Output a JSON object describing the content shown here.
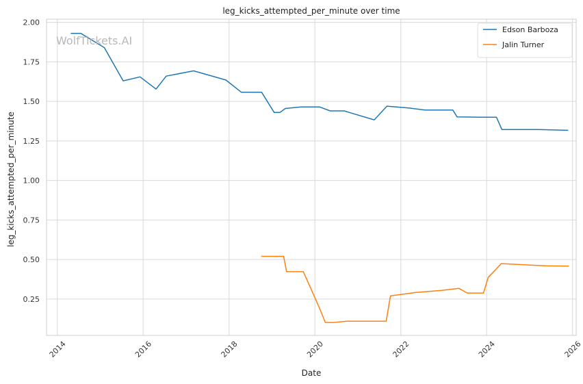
{
  "watermark": "WolfTickets.AI",
  "colors": {
    "series_0": "#1f77b4",
    "series_1": "#ff7f0e",
    "grid": "#d9d9d9",
    "frame": "#cccccc"
  },
  "chart_data": {
    "type": "line",
    "title": "leg_kicks_attempted_per_minute over time",
    "xlabel": "Date",
    "ylabel": "leg_kicks_attempted_per_minute",
    "xlim": [
      "2013-10-01",
      "2026-02-01"
    ],
    "ylim": [
      0.02,
      2.02
    ],
    "grid": true,
    "legend_position": "top-right",
    "x_ticks": [
      "2014",
      "2016",
      "2018",
      "2020",
      "2022",
      "2024",
      "2026"
    ],
    "y_ticks": [
      "0.25",
      "0.50",
      "0.75",
      "1.00",
      "1.25",
      "1.50",
      "1.75",
      "2.00"
    ],
    "series": [
      {
        "name": "Edson Barboza",
        "points": [
          [
            "2014-04-25",
            1.93
          ],
          [
            "2014-07-20",
            1.93
          ],
          [
            "2015-02-05",
            1.84
          ],
          [
            "2015-07-15",
            1.63
          ],
          [
            "2015-12-05",
            1.655
          ],
          [
            "2016-04-20",
            1.578
          ],
          [
            "2016-07-15",
            1.66
          ],
          [
            "2017-03-05",
            1.693
          ],
          [
            "2017-12-05",
            1.635
          ],
          [
            "2018-04-15",
            1.558
          ],
          [
            "2018-10-05",
            1.558
          ],
          [
            "2019-01-20",
            1.43
          ],
          [
            "2019-03-10",
            1.43
          ],
          [
            "2019-04-25",
            1.455
          ],
          [
            "2019-09-05",
            1.465
          ],
          [
            "2020-02-10",
            1.465
          ],
          [
            "2020-05-10",
            1.44
          ],
          [
            "2020-09-05",
            1.44
          ],
          [
            "2020-10-20",
            1.43
          ],
          [
            "2021-05-20",
            1.383
          ],
          [
            "2021-09-05",
            1.47
          ],
          [
            "2022-03-10",
            1.458
          ],
          [
            "2022-07-25",
            1.445
          ],
          [
            "2023-03-20",
            1.445
          ],
          [
            "2023-04-25",
            1.402
          ],
          [
            "2023-11-20",
            1.4
          ],
          [
            "2024-03-25",
            1.4
          ],
          [
            "2024-05-10",
            1.322
          ],
          [
            "2025-03-15",
            1.322
          ],
          [
            "2025-11-25",
            1.317
          ]
        ]
      },
      {
        "name": "Jalin Turner",
        "points": [
          [
            "2018-10-01",
            0.52
          ],
          [
            "2019-04-10",
            0.52
          ],
          [
            "2019-05-05",
            0.423
          ],
          [
            "2019-09-25",
            0.423
          ],
          [
            "2020-02-05",
            0.2
          ],
          [
            "2020-03-30",
            0.102
          ],
          [
            "2020-06-10",
            0.102
          ],
          [
            "2020-09-30",
            0.11
          ],
          [
            "2021-08-30",
            0.11
          ],
          [
            "2021-10-05",
            0.27
          ],
          [
            "2022-05-10",
            0.292
          ],
          [
            "2022-12-15",
            0.305
          ],
          [
            "2023-05-10",
            0.318
          ],
          [
            "2023-07-20",
            0.288
          ],
          [
            "2023-12-05",
            0.288
          ],
          [
            "2024-01-15",
            0.387
          ],
          [
            "2024-05-05",
            0.474
          ],
          [
            "2025-05-20",
            0.46
          ],
          [
            "2025-12-01",
            0.458
          ]
        ]
      }
    ]
  }
}
